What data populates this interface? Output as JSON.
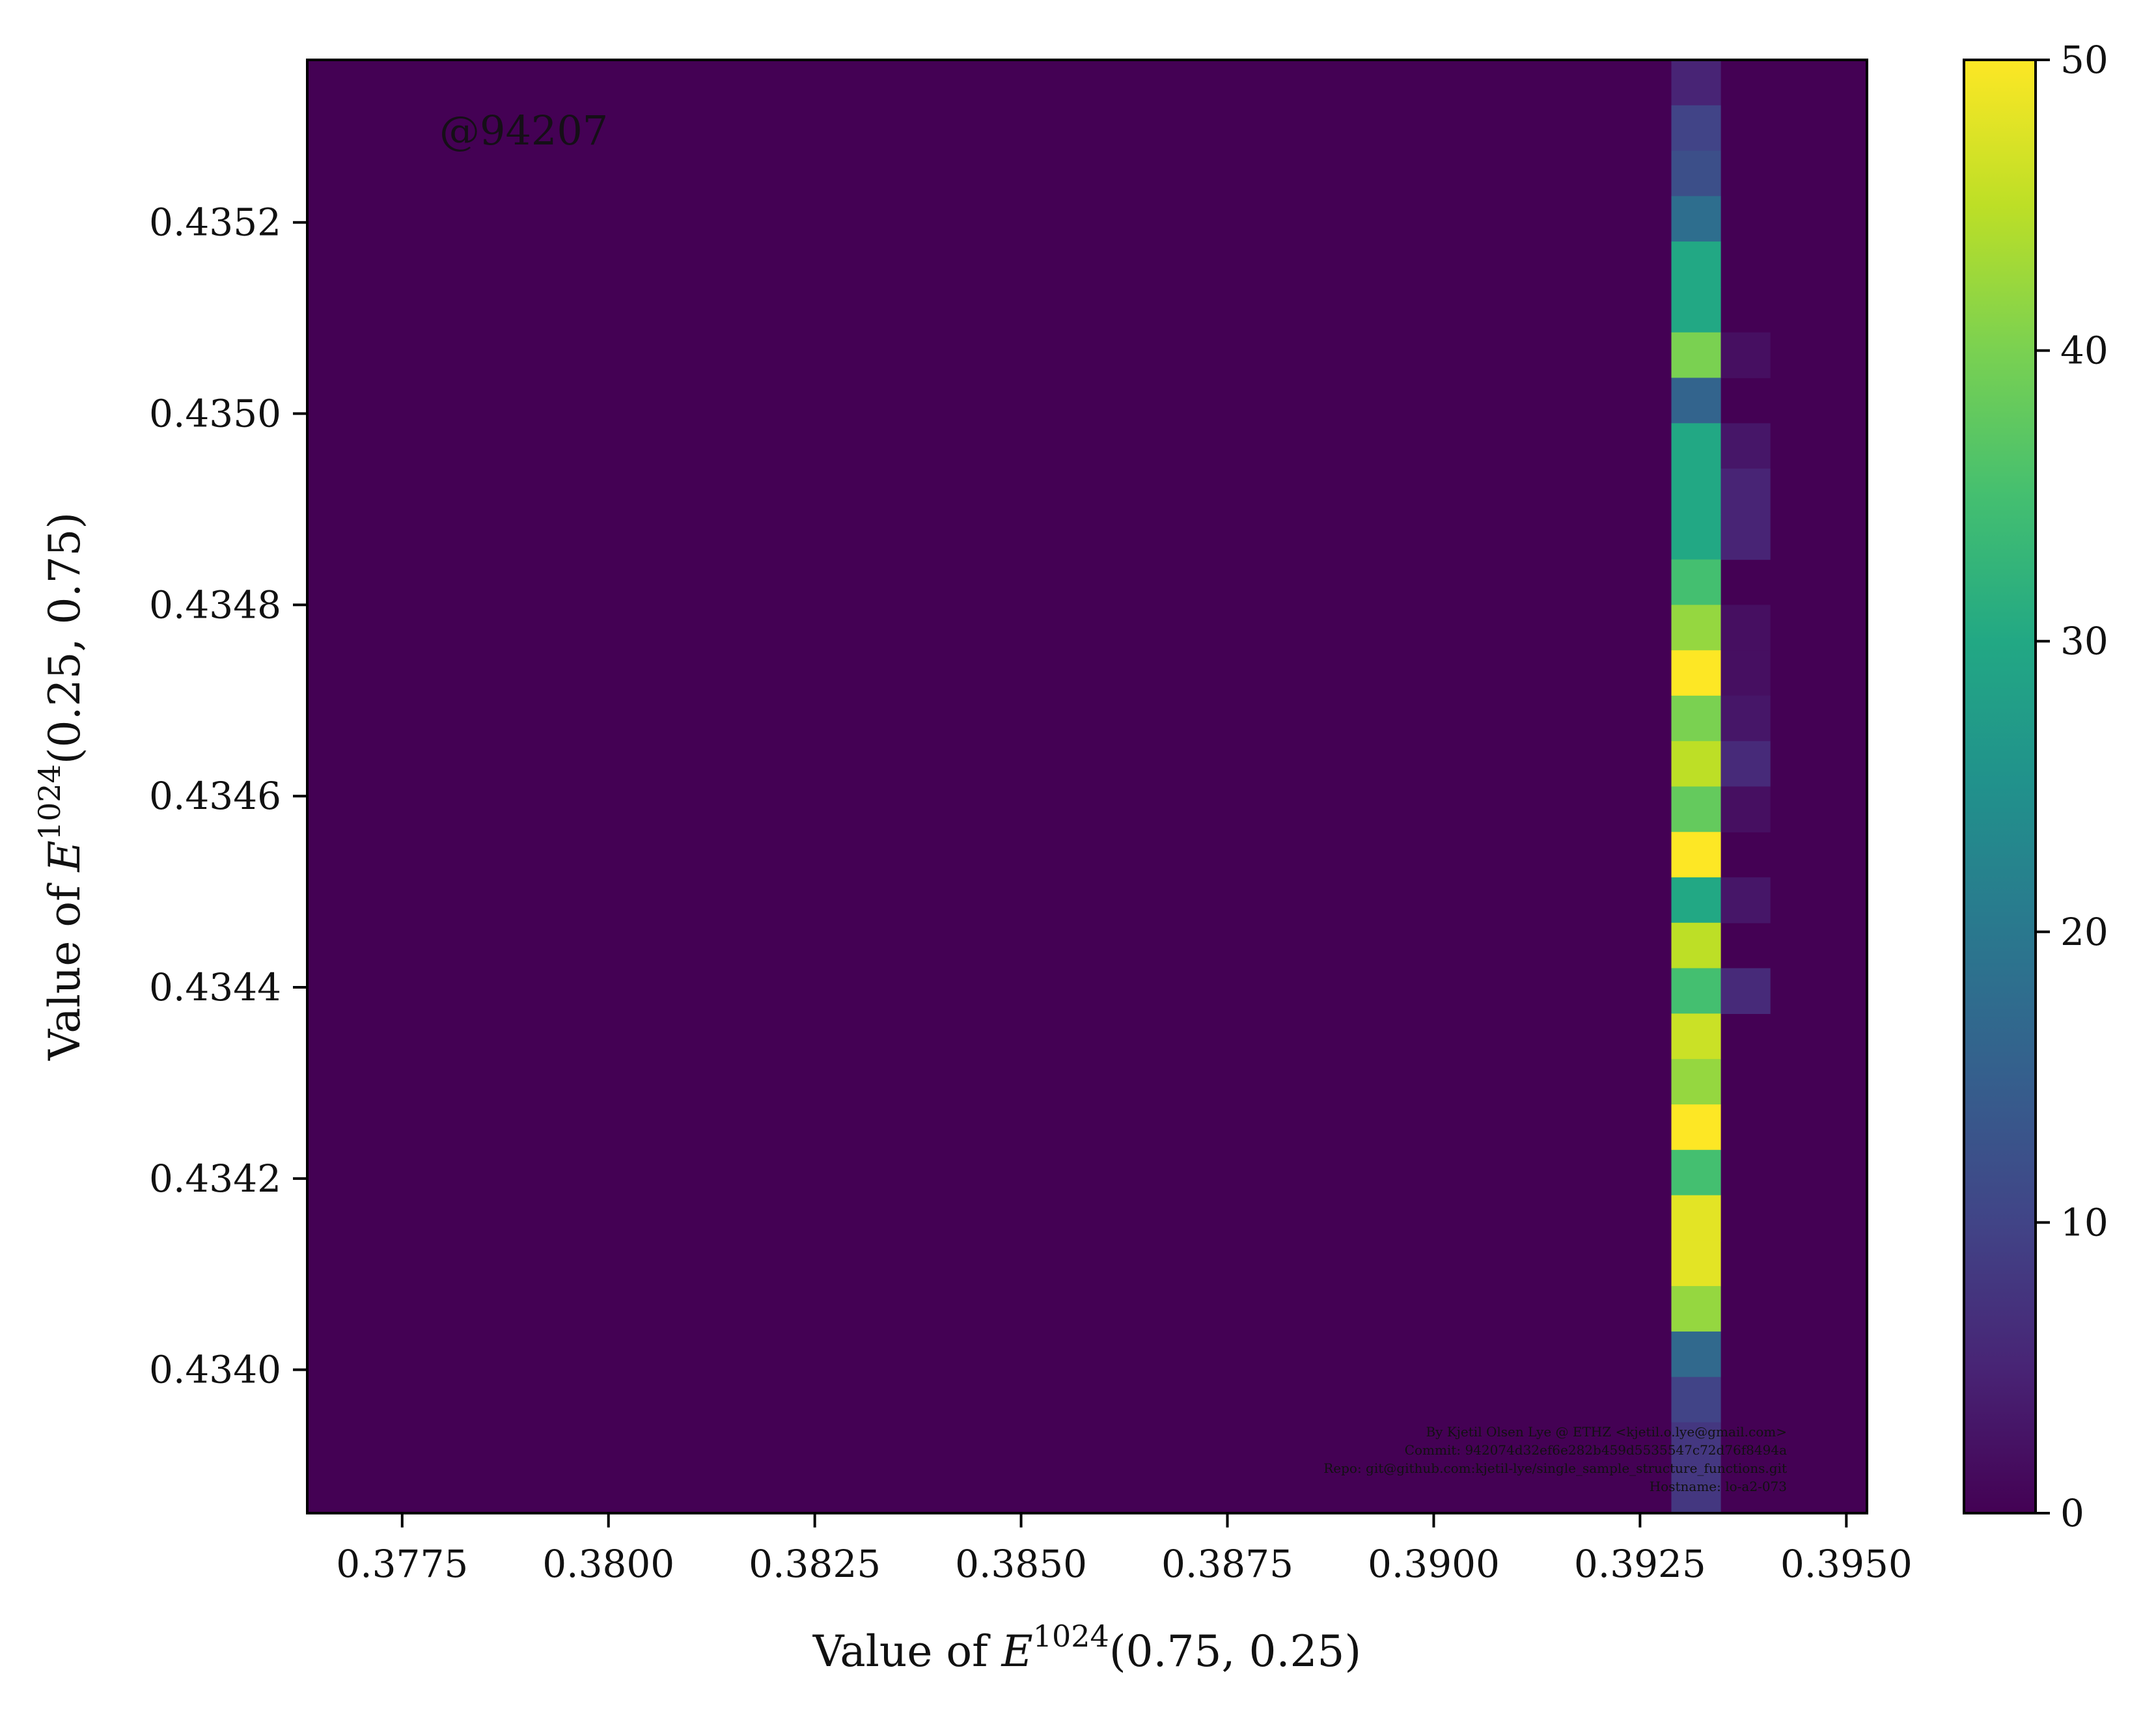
{
  "watermark": "@94207",
  "footer_lines": [
    "By Kjetil Olsen Lye @ ETHZ <kjetil.o.lye@gmail.com>",
    "Commit: 942074d32ef6e282b459d5535547c72d76f8494a",
    "Repo: git@github.com:kjetil-lye/single_sample_structure_functions.git",
    "Hostname: lo-a2-073"
  ],
  "chart_data": {
    "type": "heatmap",
    "title": "",
    "xlabel_prefix": "Value of ",
    "xlabel_var": "E",
    "xlabel_sup": "1024",
    "xlabel_args": "(0.75, 0.25)",
    "ylabel_prefix": "Value of ",
    "ylabel_var": "E",
    "ylabel_sup": "1024",
    "ylabel_args": "(0.25, 0.75)",
    "xlim": [
      0.37635,
      0.39525
    ],
    "ylim": [
      0.43385,
      0.43537
    ],
    "xticks": [
      0.3775,
      0.38,
      0.3825,
      0.385,
      0.3875,
      0.39,
      0.3925,
      0.395
    ],
    "xtick_labels": [
      "0.3775",
      "0.3800",
      "0.3825",
      "0.3850",
      "0.3875",
      "0.3900",
      "0.3925",
      "0.3950"
    ],
    "yticks": [
      0.434,
      0.4342,
      0.4344,
      0.4346,
      0.4348,
      0.435,
      0.4352
    ],
    "ytick_labels": [
      "0.4340",
      "0.4342",
      "0.4344",
      "0.4346",
      "0.4348",
      "0.4350",
      "0.4352"
    ],
    "bin_width_x": 0.0006,
    "bin_height_y": 4.75e-05,
    "colorscale": "viridis",
    "clim": [
      0,
      50
    ],
    "colorbar_ticks": [
      0,
      10,
      20,
      30,
      40,
      50
    ],
    "colorbar_tick_labels": [
      "0",
      "10",
      "20",
      "30",
      "40",
      "50"
    ],
    "columns": [
      {
        "x_left": 0.39288,
        "counts_top_to_bottom": [
          5,
          10,
          12,
          18,
          30,
          30,
          40,
          16,
          30,
          30,
          30,
          35,
          42,
          50,
          40,
          45,
          38,
          50,
          30,
          45,
          35,
          46,
          42,
          50,
          35,
          48,
          48,
          42,
          17,
          10,
          8,
          8
        ]
      },
      {
        "x_left": 0.39348,
        "counts_top_to_bottom": [
          0,
          0,
          0,
          0,
          0,
          0,
          2,
          0,
          3,
          5,
          5,
          0,
          2,
          2,
          3,
          6,
          2,
          0,
          3,
          0,
          6,
          0,
          0,
          0,
          0,
          0,
          0,
          0,
          0,
          0,
          0,
          0
        ]
      }
    ]
  }
}
